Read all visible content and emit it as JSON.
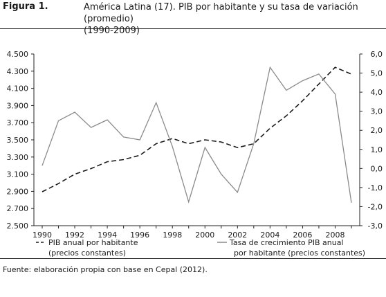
{
  "figure": {
    "label": "Figura 1.",
    "title_line1": "América Latina (17). PIB por habitante y su tasa de variación (promedio)",
    "title_line2": "(1990-2009)"
  },
  "source": "Fuente: elaboración propia con base en Cepal (2012).",
  "chart_data": {
    "type": "line",
    "x": [
      1990,
      1991,
      1992,
      1993,
      1994,
      1995,
      1996,
      1997,
      1998,
      1999,
      2000,
      2001,
      2002,
      2003,
      2004,
      2005,
      2006,
      2007,
      2008,
      2009
    ],
    "x_tick_labels": [
      "1990",
      "1992",
      "1994",
      "1996",
      "1998",
      "2000",
      "2002",
      "2004",
      "2006",
      "2008"
    ],
    "y_left_ticks": [
      "4.500",
      "4.300",
      "4.100",
      "3.900",
      "3.700",
      "3.500",
      "3.300",
      "3.100",
      "2.900",
      "2.700",
      "2.500"
    ],
    "y_right_ticks": [
      "6,0",
      "5,0",
      "4,0",
      "3,0",
      "2,0",
      "1,0",
      "0,0",
      "-1,0",
      "-2,0",
      "-3,0"
    ],
    "ylim_left": [
      2500,
      4500
    ],
    "ylim_right": [
      -3,
      6
    ],
    "series": [
      {
        "name": "PIB anual por habitante (precios constantes)",
        "legend_line1": "PIB anual por habitante",
        "legend_line2": "(precios constantes)",
        "axis": "left",
        "style": "dashed",
        "color": "#1a1a1a",
        "values": [
          2895,
          2990,
          3100,
          3165,
          3245,
          3270,
          3320,
          3455,
          3515,
          3455,
          3500,
          3475,
          3410,
          3455,
          3635,
          3780,
          3955,
          4150,
          4345,
          4265
        ]
      },
      {
        "name": "Tasa de crecimiento PIB anual por habitante (precios constantes)",
        "legend_line1": "Tasa de crecimiento PIB anual",
        "legend_line2": "por habitante (precios constantes)",
        "axis": "right",
        "style": "solid",
        "color": "#8a8a8a",
        "values": [
          0.15,
          2.5,
          2.95,
          2.15,
          2.55,
          1.65,
          1.5,
          3.45,
          1.15,
          -1.75,
          1.1,
          -0.3,
          -1.25,
          1.3,
          5.3,
          4.1,
          4.6,
          4.95,
          3.9,
          -1.8
        ]
      }
    ]
  }
}
